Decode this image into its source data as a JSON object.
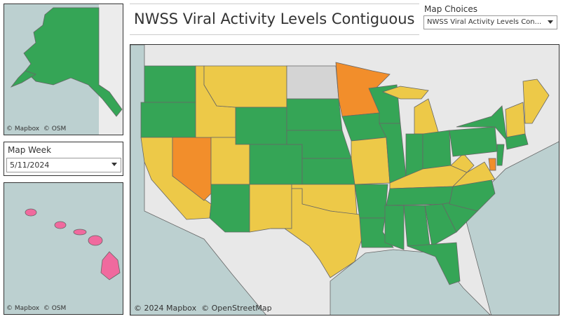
{
  "header": {
    "title": "NWSS Viral Activity Levels Contiguous"
  },
  "map_choices": {
    "label": "Map Choices",
    "value": "NWSS Viral Activity Levels Con..."
  },
  "map_week": {
    "label": "Map Week",
    "value": "5/11/2024"
  },
  "alaska": {
    "attribution_mapbox": "© Mapbox",
    "attribution_osm": "© OSM"
  },
  "hawaii": {
    "attribution_mapbox": "© Mapbox",
    "attribution_osm": "© OSM"
  },
  "main_map": {
    "attribution_mapbox": "© 2024 Mapbox",
    "attribution_osm": "© OpenStreetMap"
  }
}
